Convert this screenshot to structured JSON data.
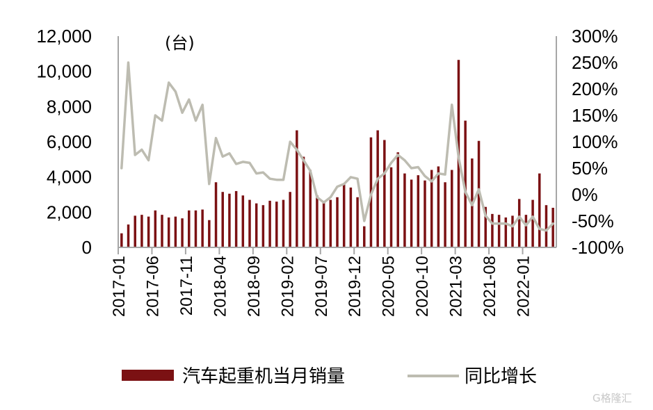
{
  "chart_data": {
    "type": "bar+line",
    "unit_label": "(台)",
    "left_axis": {
      "min": 0,
      "max": 12000,
      "ticks": [
        "0",
        "2,000",
        "4,000",
        "6,000",
        "8,000",
        "10,000",
        "12,000"
      ]
    },
    "right_axis": {
      "min": -100,
      "max": 300,
      "ticks": [
        "-100%",
        "-50%",
        "0%",
        "50%",
        "100%",
        "150%",
        "200%",
        "250%",
        "300%"
      ]
    },
    "x_tick_labels": [
      "2017-01",
      "2017-06",
      "2017-11",
      "2018-04",
      "2018-09",
      "2019-02",
      "2019-07",
      "2019-12",
      "2020-05",
      "2020-10",
      "2021-03",
      "2021-08",
      "2022-01"
    ],
    "x": [
      "2017-01",
      "2017-02",
      "2017-03",
      "2017-04",
      "2017-05",
      "2017-06",
      "2017-07",
      "2017-08",
      "2017-09",
      "2017-10",
      "2017-11",
      "2017-12",
      "2018-01",
      "2018-02",
      "2018-03",
      "2018-04",
      "2018-05",
      "2018-06",
      "2018-07",
      "2018-08",
      "2018-09",
      "2018-10",
      "2018-11",
      "2018-12",
      "2019-01",
      "2019-02",
      "2019-03",
      "2019-04",
      "2019-05",
      "2019-06",
      "2019-07",
      "2019-08",
      "2019-09",
      "2019-10",
      "2019-11",
      "2019-12",
      "2020-01",
      "2020-02",
      "2020-03",
      "2020-04",
      "2020-05",
      "2020-06",
      "2020-07",
      "2020-08",
      "2020-09",
      "2020-10",
      "2020-11",
      "2020-12",
      "2021-01",
      "2021-02",
      "2021-03",
      "2021-04",
      "2021-05",
      "2021-06",
      "2021-07",
      "2021-08",
      "2021-09",
      "2021-10",
      "2021-11",
      "2021-12",
      "2022-01",
      "2022-02",
      "2022-03",
      "2022-04",
      "2022-05"
    ],
    "series": [
      {
        "name": "汽车起重机当月销量",
        "type": "bar",
        "axis": "left",
        "color": "#7b1113",
        "values": [
          800,
          1300,
          1800,
          1850,
          1750,
          2100,
          1850,
          1700,
          1750,
          1650,
          2100,
          2100,
          2150,
          1550,
          3700,
          3150,
          3050,
          3200,
          2950,
          2700,
          2500,
          2400,
          2650,
          2600,
          2700,
          3150,
          6650,
          5150,
          4400,
          2950,
          2550,
          2700,
          2850,
          3600,
          3400,
          2850,
          1200,
          6250,
          6650,
          6100,
          4550,
          5400,
          4200,
          3850,
          4100,
          3800,
          4400,
          4600,
          3700,
          4400,
          10650,
          7200,
          5050,
          6050,
          2300,
          1900,
          1850,
          1700,
          1800,
          2750,
          1850,
          2700,
          4200,
          2400,
          2250
        ]
      },
      {
        "name": "同比增长",
        "type": "line",
        "axis": "right",
        "color": "#bdbcb1",
        "values": [
          50,
          250,
          75,
          85,
          65,
          150,
          140,
          212,
          195,
          155,
          180,
          140,
          170,
          20,
          107,
          72,
          78,
          58,
          62,
          60,
          40,
          42,
          30,
          28,
          28,
          100,
          85,
          65,
          45,
          -5,
          -15,
          -5,
          15,
          20,
          33,
          30,
          -50,
          0,
          30,
          40,
          60,
          75,
          65,
          50,
          52,
          35,
          25,
          40,
          38,
          170,
          70,
          5,
          -20,
          10,
          -40,
          -55,
          -55,
          -55,
          -60,
          -42,
          -58,
          -42,
          -65,
          -68,
          -55
        ]
      }
    ],
    "legend": {
      "position": "bottom"
    }
  },
  "watermark": "G格隆汇"
}
